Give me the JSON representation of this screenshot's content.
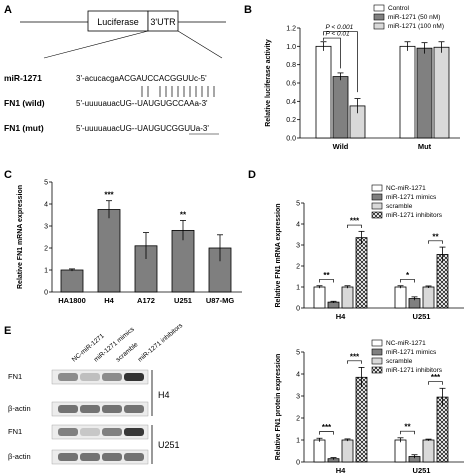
{
  "panels": {
    "a": "A",
    "b": "B",
    "c": "C",
    "d": "D",
    "e": "E"
  },
  "construct": {
    "box1": "Luciferase",
    "box2": "3'UTR"
  },
  "sequences": [
    {
      "label": "miR-1271",
      "text": "3'-acucacgaACGAUCCACGGUUc-5'"
    },
    {
      "label": "FN1 (wild)",
      "text": "5'-uuuuauacUG--UAUGUGCCAAa-3'"
    },
    {
      "label": "FN1 (mut)",
      "text": "5'-uuuuauacUG--UAUGUCGGUUa-3'"
    }
  ],
  "colors": {
    "white": "#ffffff",
    "gray": "#808080",
    "black": "#000000",
    "light": "#d9d9d9"
  },
  "chart_data": [
    {
      "id": "B",
      "type": "bar",
      "categories": [
        "Wild",
        "Mut"
      ],
      "ylabel": "Relative luciferase activity",
      "ylim": [
        0,
        1.2
      ],
      "yticks": [
        "0.0",
        "0.2",
        "0.4",
        "0.6",
        "0.8",
        "1.0",
        "1.2"
      ],
      "legend": [
        "Control",
        "miR-1271 (50 nM)",
        "miR-1271 (100 nM)"
      ],
      "series": [
        {
          "name": "Control",
          "values": [
            1.0,
            1.0
          ],
          "errors": [
            0.05,
            0.05
          ]
        },
        {
          "name": "miR-1271 (50 nM)",
          "values": [
            0.67,
            0.98
          ],
          "errors": [
            0.04,
            0.06
          ]
        },
        {
          "name": "miR-1271 (100 nM)",
          "values": [
            0.35,
            0.99
          ],
          "errors": [
            0.08,
            0.06
          ]
        }
      ],
      "annotations": [
        "P < 0.001",
        "P < 0.01"
      ]
    },
    {
      "id": "C",
      "type": "bar",
      "categories": [
        "HA1800",
        "H4",
        "A172",
        "U251",
        "U87-MG"
      ],
      "ylabel": "Relative FN1 mRNA expression",
      "ylim": [
        0,
        5
      ],
      "yticks": [
        "0",
        "1",
        "2",
        "3",
        "4",
        "5"
      ],
      "values": [
        1.0,
        3.75,
        2.1,
        2.8,
        2.0
      ],
      "errors": [
        0.05,
        0.4,
        0.6,
        0.45,
        0.6
      ],
      "significance": [
        "",
        "***",
        "",
        "**",
        ""
      ]
    },
    {
      "id": "D",
      "type": "bar",
      "categories": [
        "H4",
        "U251"
      ],
      "ylabel": "Relative FN1 mRNA expression",
      "ylim": [
        0,
        5
      ],
      "yticks": [
        "0",
        "1",
        "2",
        "3",
        "4",
        "5"
      ],
      "legend": [
        "NC-miR-1271",
        "miR-1271 mimics",
        "scramble",
        "miR-1271 inhibitors"
      ],
      "series": [
        {
          "name": "NC-miR-1271",
          "values": [
            1.0,
            1.0
          ],
          "errors": [
            0.06,
            0.06
          ]
        },
        {
          "name": "miR-1271 mimics",
          "values": [
            0.28,
            0.45
          ],
          "errors": [
            0.04,
            0.08
          ]
        },
        {
          "name": "scramble",
          "values": [
            1.0,
            1.0
          ],
          "errors": [
            0.06,
            0.05
          ]
        },
        {
          "name": "miR-1271 inhibitors",
          "values": [
            3.35,
            2.55
          ],
          "errors": [
            0.3,
            0.35
          ]
        }
      ],
      "significance": [
        "**",
        "***",
        "*",
        "**"
      ]
    },
    {
      "id": "E",
      "type": "bar",
      "categories": [
        "H4",
        "U251"
      ],
      "ylabel": "Relative FN1 protein expression",
      "ylim": [
        0,
        5
      ],
      "yticks": [
        "0",
        "1",
        "2",
        "3",
        "4",
        "5"
      ],
      "legend": [
        "NC-miR-1271",
        "miR-1271 mimics",
        "scramble",
        "miR-1271 inhibitors"
      ],
      "series": [
        {
          "name": "NC-miR-1271",
          "values": [
            1.0,
            1.0
          ],
          "errors": [
            0.08,
            0.1
          ]
        },
        {
          "name": "miR-1271 mimics",
          "values": [
            0.15,
            0.25
          ],
          "errors": [
            0.05,
            0.08
          ]
        },
        {
          "name": "scramble",
          "values": [
            1.0,
            1.0
          ],
          "errors": [
            0.05,
            0.04
          ]
        },
        {
          "name": "miR-1271 inhibitors",
          "values": [
            3.85,
            2.95
          ],
          "errors": [
            0.45,
            0.4
          ]
        }
      ],
      "significance": [
        "***",
        "***",
        "**",
        "***"
      ]
    }
  ],
  "blot": {
    "lanes": [
      "NC-miR-1271",
      "miR-1271 mimics",
      "scramble",
      "miR-1271 inhibitors"
    ],
    "rows": [
      "FN1",
      "β-actin",
      "FN1",
      "β-actin"
    ],
    "cells": [
      "H4",
      "U251"
    ]
  }
}
